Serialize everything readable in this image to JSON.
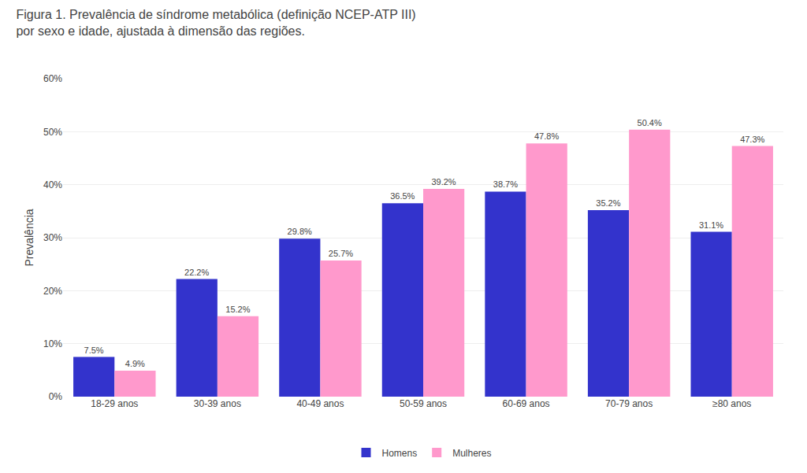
{
  "chart_data": {
    "type": "bar",
    "title": "Figura 1. Prevalência de síndrome metabólica (definição NCEP-ATP III)\npor sexo e idade, ajustada à dimensão das regiões.",
    "ylabel": "Prevalência",
    "categories": [
      "18-29 anos",
      "30-39 anos",
      "40-49 anos",
      "50-59 anos",
      "60-69 anos",
      "70-79 anos",
      "≥80 anos"
    ],
    "series": [
      {
        "name": "Homens",
        "color": "#3333cc",
        "values": [
          7.5,
          22.2,
          29.8,
          36.5,
          38.7,
          35.2,
          31.1
        ],
        "value_labels": [
          "7.5%",
          "22.2%",
          "29.8%",
          "36.5%",
          "38.7%",
          "35.2%",
          "31.1%"
        ]
      },
      {
        "name": "Mulheres",
        "color": "#ff99cc",
        "values": [
          4.9,
          15.2,
          25.7,
          39.2,
          47.8,
          50.4,
          47.3
        ],
        "value_labels": [
          "4.9%",
          "15.2%",
          "25.7%",
          "39.2%",
          "47.8%",
          "50.4%",
          "47.3%"
        ]
      }
    ],
    "ylim": [
      0,
      60
    ],
    "yticks": [
      {
        "value": 0,
        "label": "0%"
      },
      {
        "value": 10,
        "label": "10%"
      },
      {
        "value": 20,
        "label": "20%"
      },
      {
        "value": 30,
        "label": "30%"
      },
      {
        "value": 40,
        "label": "40%"
      },
      {
        "value": 50,
        "label": "50%"
      },
      {
        "value": 60,
        "label": "60%"
      }
    ],
    "grid": true,
    "legend": "bottom",
    "data_labels": true
  }
}
